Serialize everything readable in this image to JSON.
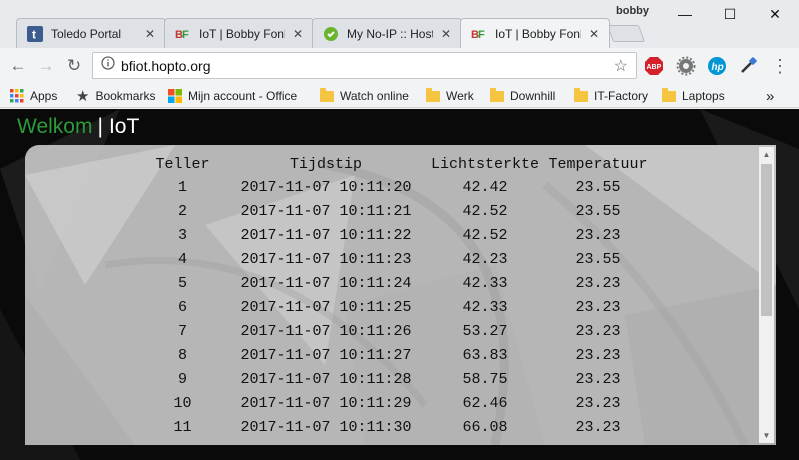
{
  "window": {
    "user": "bobby",
    "minimize": "—",
    "maximize": "☐",
    "close": "✕"
  },
  "tabs": [
    {
      "title": "Toledo Portal",
      "icon": "toledo-t-icon",
      "close": "✕"
    },
    {
      "title": "IoT | Bobby Fonk",
      "icon": "bf-logo-icon",
      "close": "✕"
    },
    {
      "title": "My No-IP :: Host",
      "icon": "noip-icon",
      "close": "✕"
    },
    {
      "title": "IoT | Bobby Fonk",
      "icon": "bf-logo-icon",
      "close": "✕",
      "active": true
    }
  ],
  "toolbar": {
    "url": "bfiot.hopto.org",
    "back": "←",
    "forward": "→",
    "reload": "↻",
    "star": "☆",
    "extensions": [
      "adblock-plus-icon",
      "settings-gear-icon",
      "hp-icon",
      "eyedropper-icon"
    ],
    "menu": "⋮"
  },
  "bookmarks": {
    "apps": "Apps",
    "items": [
      {
        "label": "Bookmarks",
        "icon": "star-icon"
      },
      {
        "label": "Mijn account - Office",
        "icon": "microsoft-icon"
      },
      {
        "label": "Watch online",
        "icon": "folder-icon"
      },
      {
        "label": "Werk",
        "icon": "folder-icon"
      },
      {
        "label": "Downhill",
        "icon": "folder-icon"
      },
      {
        "label": "IT-Factory",
        "icon": "folder-icon"
      },
      {
        "label": "Laptops",
        "icon": "folder-icon"
      }
    ],
    "more": "»"
  },
  "page": {
    "heading_welcome": "Welkom",
    "heading_separator": "|",
    "heading_iot": "IoT",
    "colors": {
      "welcome": "#2e9b3a",
      "background": "#0a0a0a",
      "panel": "#c4c4c4"
    }
  },
  "table": {
    "headers": [
      "Teller",
      "Tijdstip",
      "Lichtsterkte",
      "Temperatuur"
    ],
    "rows": [
      [
        "1",
        "2017-11-07 10:11:20",
        "42.42",
        "23.55"
      ],
      [
        "2",
        "2017-11-07 10:11:21",
        "42.52",
        "23.55"
      ],
      [
        "3",
        "2017-11-07 10:11:22",
        "42.52",
        "23.23"
      ],
      [
        "4",
        "2017-11-07 10:11:23",
        "42.23",
        "23.55"
      ],
      [
        "5",
        "2017-11-07 10:11:24",
        "42.33",
        "23.23"
      ],
      [
        "6",
        "2017-11-07 10:11:25",
        "42.33",
        "23.23"
      ],
      [
        "7",
        "2017-11-07 10:11:26",
        "53.27",
        "23.23"
      ],
      [
        "8",
        "2017-11-07 10:11:27",
        "63.83",
        "23.23"
      ],
      [
        "9",
        "2017-11-07 10:11:28",
        "58.75",
        "23.23"
      ],
      [
        "10",
        "2017-11-07 10:11:29",
        "62.46",
        "23.23"
      ],
      [
        "11",
        "2017-11-07 10:11:30",
        "66.08",
        "23.23"
      ]
    ]
  },
  "scrollbar": {
    "position_fraction": 0.0
  }
}
